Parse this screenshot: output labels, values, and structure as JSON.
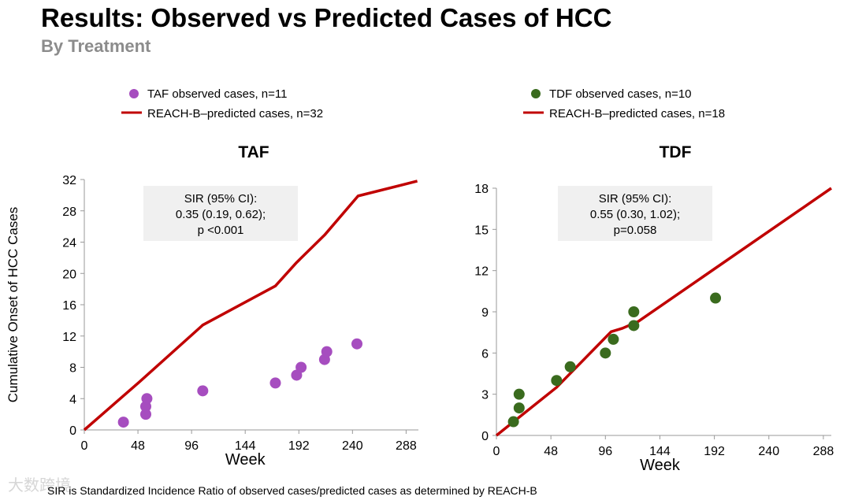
{
  "header": {
    "title": "Results: Observed vs Predicted Cases of HCC",
    "subtitle": "By Treatment"
  },
  "footer": "SIR is Standardized Incidence Ratio of observed cases/predicted cases as determined by REACH-B",
  "watermark": "大数跨境",
  "colors": {
    "line": "#c00000",
    "taf": "#a64dbf",
    "tdf": "#3a6b1e",
    "box": "#f0f0f0",
    "axis": "#999999"
  },
  "chart_data": [
    {
      "type": "scatter+line",
      "title": "TAF",
      "xlabel": "Week",
      "ylabel": "Cumulative Onset of HCC Cases",
      "xlim": [
        0,
        299
      ],
      "ylim": [
        0,
        32
      ],
      "xticks": [
        0,
        48,
        96,
        144,
        192,
        240,
        288
      ],
      "yticks": [
        0,
        4,
        8,
        12,
        16,
        20,
        24,
        28,
        32
      ],
      "legend": [
        "TAF observed cases, n=11",
        "REACH-B–predicted cases, n=32"
      ],
      "annotation": [
        "SIR (95% CI):",
        "0.35 (0.19, 0.62);",
        "p <0.001"
      ],
      "observed": [
        [
          35,
          1
        ],
        [
          55,
          2
        ],
        [
          55,
          3
        ],
        [
          56,
          4
        ],
        [
          106,
          5
        ],
        [
          171,
          6
        ],
        [
          190,
          7
        ],
        [
          194,
          8
        ],
        [
          215,
          9
        ],
        [
          217,
          10
        ],
        [
          244,
          11
        ]
      ],
      "predicted": [
        [
          0,
          0
        ],
        [
          49,
          6.1
        ],
        [
          106,
          13.4
        ],
        [
          171,
          18.4
        ],
        [
          190,
          21.4
        ],
        [
          215,
          24.9
        ],
        [
          245,
          29.9
        ],
        [
          298,
          31.8
        ]
      ]
    },
    {
      "type": "scatter+line",
      "title": "TDF",
      "xlabel": "Week",
      "ylabel": "",
      "xlim": [
        0,
        295
      ],
      "ylim": [
        0,
        18
      ],
      "xticks": [
        0,
        48,
        96,
        144,
        192,
        240,
        288
      ],
      "yticks": [
        0,
        3,
        6,
        9,
        12,
        15,
        18
      ],
      "legend": [
        "TDF observed cases, n=10",
        "REACH-B–predicted cases, n=18"
      ],
      "annotation": [
        "SIR (95% CI):",
        "0.55 (0.30, 1.02);",
        "p=0.058"
      ],
      "observed": [
        [
          15,
          1
        ],
        [
          20,
          2
        ],
        [
          20,
          3
        ],
        [
          53,
          4
        ],
        [
          65,
          5
        ],
        [
          96,
          6
        ],
        [
          103,
          7
        ],
        [
          121,
          8
        ],
        [
          121,
          9
        ],
        [
          193,
          10
        ]
      ],
      "predicted": [
        [
          0,
          0
        ],
        [
          53,
          3.5
        ],
        [
          101,
          7.55
        ],
        [
          111,
          7.8
        ],
        [
          125,
          8.3
        ],
        [
          295,
          18
        ]
      ]
    }
  ]
}
